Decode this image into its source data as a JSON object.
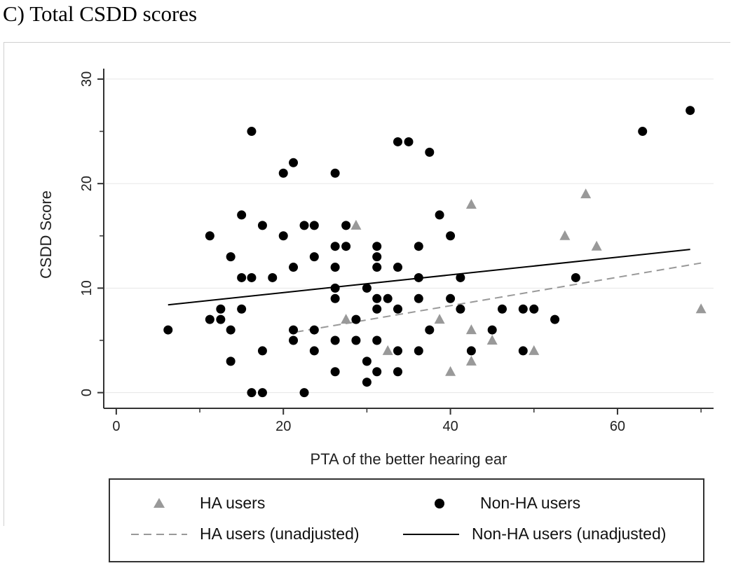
{
  "panel_title": "C) Total CSDD scores",
  "colors": {
    "ha": "#999999",
    "non_ha": "#000000",
    "grid": "#e6e6e6",
    "axis": "#333333"
  },
  "chart_data": {
    "type": "scatter",
    "title": "C) Total CSDD scores",
    "xlabel": "PTA of the better hearing ear",
    "ylabel": "CSDD Score",
    "xlim": [
      -1.5,
      71.5
    ],
    "ylim": [
      -1.5,
      31
    ],
    "xticks": [
      0,
      20,
      40,
      60
    ],
    "yticks": [
      0,
      10,
      20,
      30
    ],
    "grid": "horizontal",
    "series": [
      {
        "name": "HA users",
        "marker": "triangle",
        "x": [
          28.7,
          27.5,
          32.5,
          38.7,
          40.0,
          42.5,
          42.5,
          42.5,
          45.0,
          50.0,
          53.7,
          56.2,
          57.5,
          70.0
        ],
        "y": [
          16,
          7,
          4,
          7,
          2,
          18,
          6,
          3,
          5,
          4,
          15,
          19,
          14,
          8
        ]
      },
      {
        "name": "Non-HA users",
        "marker": "circle",
        "x": [
          6.2,
          11.2,
          11.2,
          12.5,
          12.5,
          13.7,
          13.7,
          13.7,
          15.0,
          15.0,
          15.0,
          16.2,
          16.2,
          16.2,
          17.5,
          17.5,
          17.5,
          18.7,
          20.0,
          20.0,
          21.2,
          21.2,
          21.2,
          21.2,
          22.5,
          22.5,
          23.7,
          23.7,
          23.7,
          23.7,
          26.2,
          26.2,
          26.2,
          26.2,
          26.2,
          26.2,
          26.2,
          27.5,
          27.5,
          28.7,
          28.7,
          30.0,
          30.0,
          30.0,
          31.2,
          31.2,
          31.2,
          31.2,
          31.2,
          31.2,
          31.2,
          32.5,
          33.7,
          33.7,
          33.7,
          33.7,
          33.7,
          35.0,
          36.2,
          36.2,
          36.2,
          36.2,
          37.5,
          37.5,
          38.7,
          40.0,
          40.0,
          41.2,
          41.2,
          42.5,
          45.0,
          46.2,
          48.7,
          48.7,
          50.0,
          52.5,
          55.0,
          63.0,
          68.7
        ],
        "y": [
          6,
          15,
          7,
          8,
          7,
          13,
          6,
          3,
          17,
          11,
          8,
          25,
          11,
          0,
          16,
          4,
          0,
          11,
          21,
          15,
          22,
          12,
          6,
          5,
          16,
          0,
          16,
          13,
          6,
          4,
          21,
          14,
          12,
          10,
          9,
          5,
          2,
          16,
          14,
          7,
          5,
          10,
          3,
          1,
          14,
          13,
          12,
          9,
          8,
          5,
          2,
          9,
          24,
          12,
          8,
          4,
          2,
          24,
          14,
          11,
          9,
          4,
          23,
          6,
          17,
          15,
          9,
          11,
          8,
          4,
          6,
          8,
          8,
          4,
          8,
          7,
          11,
          25,
          27
        ]
      }
    ],
    "fit_lines": [
      {
        "name": "HA users (unadjusted)",
        "style": "dashed",
        "x": [
          21.5,
          70.0
        ],
        "y": [
          5.8,
          12.4
        ]
      },
      {
        "name": "Non-HA users (unadjusted)",
        "style": "solid",
        "x": [
          6.2,
          68.7
        ],
        "y": [
          8.4,
          13.7
        ]
      }
    ],
    "legend": {
      "position": "bottom",
      "entries": [
        "HA users",
        "Non-HA users",
        "HA users (unadjusted)",
        "Non-HA users (unadjusted)"
      ]
    }
  }
}
